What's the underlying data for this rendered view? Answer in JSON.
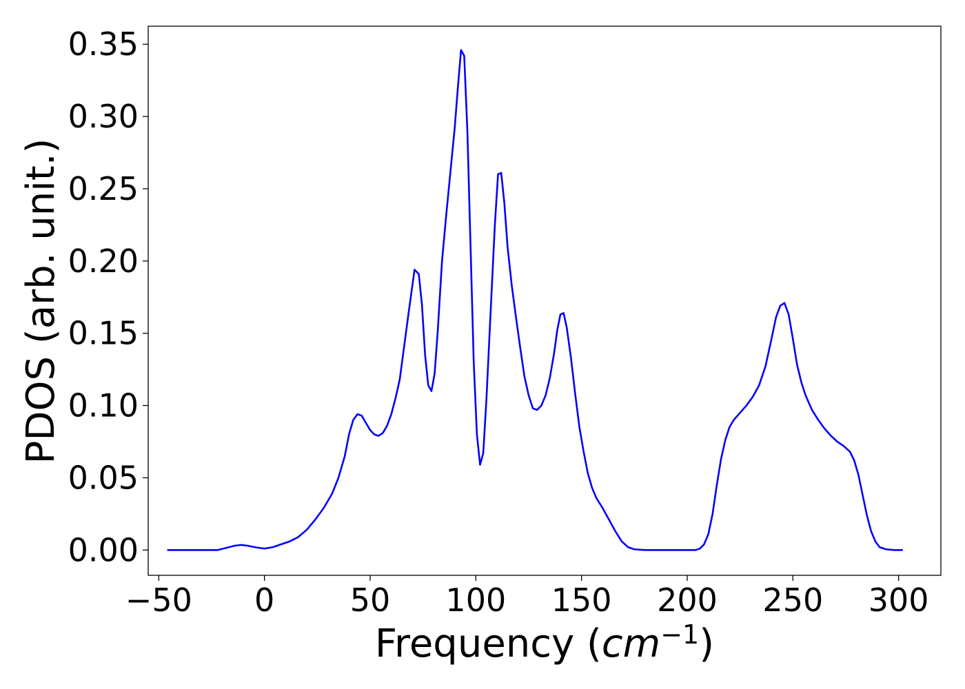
{
  "chart_data": {
    "type": "line",
    "xlabel_text": "Frequency (",
    "xlabel_math_base": "cm",
    "xlabel_math_sup": "−1",
    "xlabel_close": ")",
    "ylabel": "PDOS (arb. unit.)",
    "xlim": [
      -55,
      320
    ],
    "ylim": [
      -0.0175,
      0.3625
    ],
    "x_ticks": [
      -50,
      0,
      50,
      100,
      150,
      200,
      250,
      300
    ],
    "x_tick_labels": [
      "−50",
      "0",
      "50",
      "100",
      "150",
      "200",
      "250",
      "300"
    ],
    "y_ticks": [
      0.0,
      0.05,
      0.1,
      0.15,
      0.2,
      0.25,
      0.3,
      0.35
    ],
    "y_tick_labels": [
      "0.00",
      "0.05",
      "0.10",
      "0.15",
      "0.20",
      "0.25",
      "0.30",
      "0.35"
    ],
    "grid": false,
    "series": [
      {
        "color": "#0000ff",
        "points": [
          [
            -46,
            0.0
          ],
          [
            -30,
            0.0
          ],
          [
            -22,
            0.0
          ],
          [
            -18,
            0.0015
          ],
          [
            -14,
            0.003
          ],
          [
            -11,
            0.0035
          ],
          [
            -8,
            0.003
          ],
          [
            -4,
            0.0018
          ],
          [
            0,
            0.001
          ],
          [
            4,
            0.002
          ],
          [
            8,
            0.004
          ],
          [
            12,
            0.006
          ],
          [
            16,
            0.009
          ],
          [
            20,
            0.014
          ],
          [
            24,
            0.021
          ],
          [
            28,
            0.029
          ],
          [
            32,
            0.039
          ],
          [
            35,
            0.05
          ],
          [
            38,
            0.065
          ],
          [
            40,
            0.08
          ],
          [
            42,
            0.09
          ],
          [
            44,
            0.094
          ],
          [
            46,
            0.093
          ],
          [
            48,
            0.088
          ],
          [
            50,
            0.083
          ],
          [
            52,
            0.08
          ],
          [
            54,
            0.079
          ],
          [
            56,
            0.081
          ],
          [
            58,
            0.086
          ],
          [
            60,
            0.094
          ],
          [
            62,
            0.105
          ],
          [
            64,
            0.118
          ],
          [
            66,
            0.14
          ],
          [
            68,
            0.162
          ],
          [
            69.5,
            0.178
          ],
          [
            71,
            0.194
          ],
          [
            73,
            0.191
          ],
          [
            74.5,
            0.17
          ],
          [
            76,
            0.135
          ],
          [
            77.5,
            0.114
          ],
          [
            79,
            0.11
          ],
          [
            80.5,
            0.122
          ],
          [
            82,
            0.152
          ],
          [
            84,
            0.2
          ],
          [
            86,
            0.232
          ],
          [
            88,
            0.262
          ],
          [
            90,
            0.292
          ],
          [
            91.5,
            0.32
          ],
          [
            93,
            0.346
          ],
          [
            94.5,
            0.342
          ],
          [
            96,
            0.29
          ],
          [
            97.5,
            0.21
          ],
          [
            99,
            0.13
          ],
          [
            100.5,
            0.08
          ],
          [
            102,
            0.059
          ],
          [
            103.5,
            0.067
          ],
          [
            105,
            0.104
          ],
          [
            107,
            0.165
          ],
          [
            109,
            0.225
          ],
          [
            110.5,
            0.26
          ],
          [
            112,
            0.261
          ],
          [
            113.5,
            0.24
          ],
          [
            115,
            0.21
          ],
          [
            117,
            0.183
          ],
          [
            119,
            0.161
          ],
          [
            121,
            0.14
          ],
          [
            123,
            0.12
          ],
          [
            125,
            0.107
          ],
          [
            127,
            0.098
          ],
          [
            129,
            0.097
          ],
          [
            131,
            0.1
          ],
          [
            133,
            0.107
          ],
          [
            135,
            0.119
          ],
          [
            137,
            0.136
          ],
          [
            138.5,
            0.152
          ],
          [
            140,
            0.163
          ],
          [
            141.5,
            0.164
          ],
          [
            143,
            0.154
          ],
          [
            145,
            0.133
          ],
          [
            147,
            0.108
          ],
          [
            149,
            0.085
          ],
          [
            151,
            0.068
          ],
          [
            153,
            0.053
          ],
          [
            155,
            0.043
          ],
          [
            157,
            0.036
          ],
          [
            160,
            0.029
          ],
          [
            163,
            0.021
          ],
          [
            166,
            0.013
          ],
          [
            169,
            0.006
          ],
          [
            172,
            0.002
          ],
          [
            175,
            0.0005
          ],
          [
            180,
            0.0
          ],
          [
            200,
            0.0
          ],
          [
            204,
            0.0
          ],
          [
            206,
            0.001
          ],
          [
            208,
            0.004
          ],
          [
            210,
            0.011
          ],
          [
            212,
            0.025
          ],
          [
            214,
            0.045
          ],
          [
            216,
            0.063
          ],
          [
            218,
            0.076
          ],
          [
            220,
            0.085
          ],
          [
            222,
            0.09
          ],
          [
            225,
            0.095
          ],
          [
            228,
            0.1
          ],
          [
            231,
            0.106
          ],
          [
            234,
            0.114
          ],
          [
            237,
            0.127
          ],
          [
            240,
            0.147
          ],
          [
            242,
            0.161
          ],
          [
            244,
            0.169
          ],
          [
            246,
            0.171
          ],
          [
            248,
            0.163
          ],
          [
            250,
            0.146
          ],
          [
            252,
            0.128
          ],
          [
            254,
            0.116
          ],
          [
            256,
            0.107
          ],
          [
            259,
            0.097
          ],
          [
            262,
            0.09
          ],
          [
            265,
            0.084
          ],
          [
            268,
            0.079
          ],
          [
            271,
            0.075
          ],
          [
            274,
            0.072
          ],
          [
            277,
            0.068
          ],
          [
            279,
            0.062
          ],
          [
            281,
            0.052
          ],
          [
            283,
            0.038
          ],
          [
            285,
            0.024
          ],
          [
            287,
            0.013
          ],
          [
            289,
            0.006
          ],
          [
            291,
            0.002
          ],
          [
            294,
            0.0005
          ],
          [
            298,
            0.0
          ],
          [
            302,
            0.0
          ]
        ]
      }
    ]
  }
}
